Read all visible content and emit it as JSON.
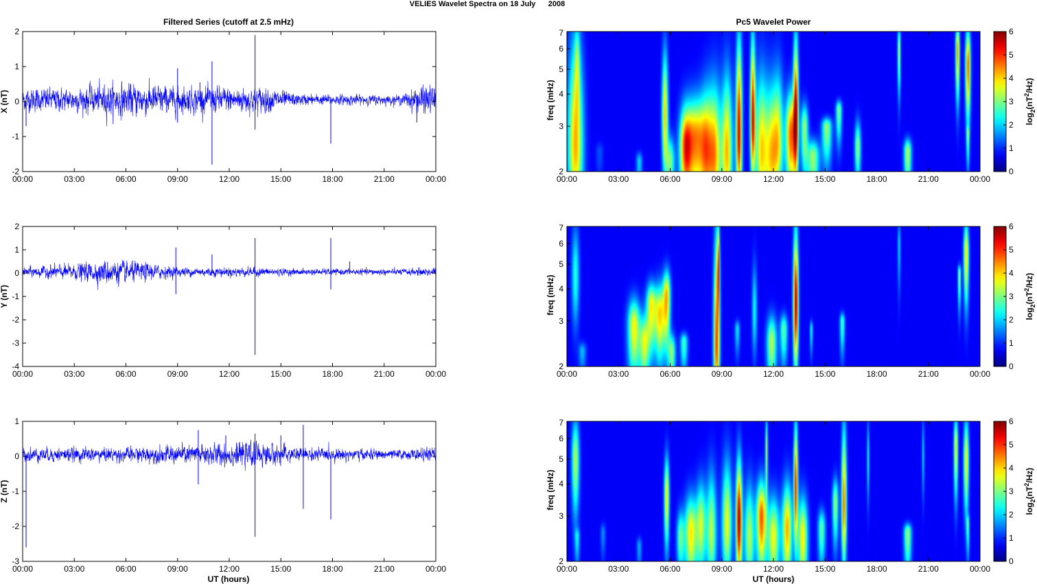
{
  "figure": {
    "suptitle": "VELIES Wavelet Spectra on 18 July      2008",
    "left_title": "Filtered Series (cutoff at 2.5 mHz)",
    "right_title": "Pc5 Wavelet Power",
    "xlabel": "UT (hours)"
  },
  "chart_data": [
    {
      "type": "line",
      "component": "X",
      "ylabel": "X (nT)",
      "xlim": [
        0,
        24
      ],
      "ylim": [
        -2,
        2
      ],
      "xticklabels": [
        "00:00",
        "03:00",
        "06:00",
        "09:00",
        "12:00",
        "15:00",
        "18:00",
        "21:00",
        "00:00"
      ],
      "yticks": [
        -2,
        -1,
        0,
        1,
        2
      ],
      "series_color": "#0000ff",
      "noise_envelope": [
        [
          0,
          0.25
        ],
        [
          3,
          0.25
        ],
        [
          5,
          0.35
        ],
        [
          7,
          0.35
        ],
        [
          9,
          0.28
        ],
        [
          12,
          0.28
        ],
        [
          14,
          0.28
        ],
        [
          16,
          0.12
        ],
        [
          22,
          0.1
        ],
        [
          23,
          0.3
        ],
        [
          24,
          0.3
        ]
      ],
      "spikes": [
        [
          9.0,
          0.95
        ],
        [
          9.0,
          -0.6
        ],
        [
          11.0,
          1.15
        ],
        [
          11.0,
          -1.8
        ],
        [
          13.5,
          1.9
        ],
        [
          13.5,
          -0.8
        ],
        [
          17.9,
          -1.2
        ],
        [
          10.3,
          0.55
        ],
        [
          0.2,
          -0.7
        ],
        [
          22.9,
          -0.6
        ]
      ]
    },
    {
      "type": "line",
      "component": "Y",
      "ylabel": "Y (nT)",
      "xlim": [
        0,
        24
      ],
      "ylim": [
        -4,
        2
      ],
      "xticklabels": [
        "00:00",
        "03:00",
        "06:00",
        "09:00",
        "12:00",
        "15:00",
        "18:00",
        "21:00",
        "00:00"
      ],
      "yticks": [
        -4,
        -3,
        -2,
        -1,
        0,
        1,
        2
      ],
      "series_color": "#0000ff",
      "noise_envelope": [
        [
          0,
          0.15
        ],
        [
          3,
          0.25
        ],
        [
          5,
          0.4
        ],
        [
          7,
          0.3
        ],
        [
          9,
          0.15
        ],
        [
          13,
          0.15
        ],
        [
          16,
          0.1
        ],
        [
          22,
          0.1
        ],
        [
          24,
          0.15
        ]
      ],
      "spikes": [
        [
          8.9,
          1.1
        ],
        [
          8.9,
          -0.9
        ],
        [
          11.0,
          0.8
        ],
        [
          13.5,
          1.5
        ],
        [
          13.5,
          -3.5
        ],
        [
          17.9,
          1.5
        ],
        [
          17.9,
          -0.7
        ],
        [
          19.0,
          0.5
        ]
      ]
    },
    {
      "type": "line",
      "component": "Z",
      "ylabel": "Z (nT)",
      "xlim": [
        0,
        24
      ],
      "ylim": [
        -3,
        1
      ],
      "xticklabels": [
        "00:00",
        "03:00",
        "06:00",
        "09:00",
        "12:00",
        "15:00",
        "18:00",
        "21:00",
        "00:00"
      ],
      "yticks": [
        -3,
        -2,
        -1,
        0,
        1
      ],
      "series_color": "#0000ff",
      "noise_envelope": [
        [
          0,
          0.15
        ],
        [
          3,
          0.15
        ],
        [
          6,
          0.15
        ],
        [
          9,
          0.2
        ],
        [
          12,
          0.25
        ],
        [
          14,
          0.25
        ],
        [
          16,
          0.15
        ],
        [
          22,
          0.1
        ],
        [
          24,
          0.15
        ]
      ],
      "spikes": [
        [
          0.2,
          -2.6
        ],
        [
          10.2,
          0.75
        ],
        [
          10.2,
          -0.8
        ],
        [
          11.8,
          0.6
        ],
        [
          13.5,
          0.65
        ],
        [
          13.5,
          -2.3
        ],
        [
          16.3,
          0.9
        ],
        [
          16.3,
          -1.5
        ],
        [
          17.9,
          -1.8
        ],
        [
          15.0,
          0.6
        ]
      ]
    },
    {
      "type": "heatmap",
      "component": "X",
      "ylabel": "freq (mHz)",
      "cbar_label": "log2(nT^2/Hz)",
      "xlim": [
        0,
        24
      ],
      "ylim": [
        2,
        7
      ],
      "yscale": "log",
      "yticks": [
        2,
        3,
        4,
        5,
        6,
        7
      ],
      "clim": [
        0,
        6
      ],
      "cbar_ticks": [
        0,
        1,
        2,
        3,
        4,
        5,
        6
      ],
      "xticklabels": [
        "00:00",
        "03:00",
        "06:00",
        "09:00",
        "12:00",
        "15:00",
        "18:00",
        "21:00",
        "00:00"
      ],
      "bursts": [
        [
          0.5,
          2.5,
          4.0,
          7.0,
          0.3,
          3
        ],
        [
          0.6,
          5.5,
          1.5,
          7.0,
          0.1,
          2
        ],
        [
          1.9,
          2.4,
          0.6,
          2.0,
          0.15,
          1
        ],
        [
          4.2,
          2.2,
          1.5,
          2.0,
          0.12,
          1.2
        ],
        [
          5.7,
          3.3,
          3.8,
          6.0,
          0.12,
          2.3
        ],
        [
          6.0,
          2.2,
          2.6,
          2.6,
          0.18,
          1.4
        ],
        [
          6.9,
          2.5,
          4.5,
          3.5,
          0.25,
          2.3
        ],
        [
          7.5,
          2.7,
          4.0,
          3.8,
          0.35,
          2.7
        ],
        [
          8.1,
          2.4,
          3.5,
          4.2,
          0.25,
          2.3
        ],
        [
          8.6,
          2.3,
          3.8,
          4.5,
          0.25,
          2.1
        ],
        [
          9.3,
          2.4,
          3.9,
          5.0,
          0.22,
          2.8
        ],
        [
          10.0,
          2.8,
          5.5,
          7.0,
          0.12,
          2.8
        ],
        [
          10.8,
          3.2,
          5.3,
          7.0,
          0.1,
          2.4
        ],
        [
          11.3,
          2.4,
          3.6,
          5.0,
          0.25,
          2.6
        ],
        [
          11.9,
          2.3,
          3.5,
          4.5,
          0.25,
          2.3
        ],
        [
          12.3,
          2.6,
          2.8,
          5.0,
          0.2,
          1.8
        ],
        [
          13.0,
          2.8,
          4.5,
          4.0,
          0.2,
          2.5
        ],
        [
          13.3,
          3.3,
          5.5,
          7.0,
          0.1,
          2.8
        ],
        [
          13.8,
          3.0,
          2.8,
          3.5,
          0.15,
          2.0
        ],
        [
          14.3,
          2.3,
          2.8,
          2.5,
          0.25,
          1.8
        ],
        [
          15.1,
          3.0,
          2.8,
          3.0,
          0.2,
          1.6
        ],
        [
          15.8,
          3.5,
          2.6,
          3.0,
          0.12,
          1.4
        ],
        [
          16.9,
          2.5,
          2.8,
          3.0,
          0.12,
          1.3
        ],
        [
          19.8,
          2.4,
          3.0,
          2.5,
          0.15,
          1.6
        ],
        [
          19.3,
          6.0,
          3.0,
          7.0,
          0.06,
          2
        ],
        [
          22.7,
          6.0,
          4.2,
          7.0,
          0.08,
          2.2
        ],
        [
          23.3,
          5.2,
          4.6,
          7.0,
          0.1,
          2.4
        ],
        [
          23.3,
          2.8,
          2.0,
          2.0,
          0.06,
          1.5
        ]
      ]
    },
    {
      "type": "heatmap",
      "component": "Y",
      "ylabel": "freq (mHz)",
      "cbar_label": "log2(nT^2/Hz)",
      "xlim": [
        0,
        24
      ],
      "ylim": [
        2,
        7
      ],
      "yscale": "log",
      "yticks": [
        2,
        3,
        4,
        5,
        6,
        7
      ],
      "clim": [
        0,
        6
      ],
      "cbar_ticks": [
        0,
        1,
        2,
        3,
        4,
        5,
        6
      ],
      "xticklabels": [
        "00:00",
        "03:00",
        "06:00",
        "09:00",
        "12:00",
        "15:00",
        "18:00",
        "21:00",
        "00:00"
      ],
      "bursts": [
        [
          0.5,
          4.5,
          2.0,
          7.0,
          0.15,
          2
        ],
        [
          0.9,
          2.3,
          1.3,
          2.0,
          0.15,
          0.8
        ],
        [
          3.9,
          2.9,
          3.5,
          3.5,
          0.25,
          2.3
        ],
        [
          4.5,
          2.5,
          3.0,
          3.0,
          0.2,
          1.8
        ],
        [
          4.9,
          3.5,
          3.4,
          4.0,
          0.2,
          2.0
        ],
        [
          5.4,
          3.2,
          3.6,
          4.0,
          0.2,
          2.0
        ],
        [
          5.8,
          3.8,
          3.8,
          4.5,
          0.15,
          2.2
        ],
        [
          6.1,
          2.3,
          2.6,
          2.5,
          0.15,
          1.5
        ],
        [
          6.8,
          2.5,
          2.2,
          2.5,
          0.15,
          1.2
        ],
        [
          8.7,
          2.4,
          4.8,
          7.0,
          0.12,
          2.2
        ],
        [
          8.8,
          5.0,
          3.5,
          7.0,
          0.05,
          2.0
        ],
        [
          9.9,
          2.8,
          1.6,
          2.0,
          0.1,
          1.0
        ],
        [
          10.9,
          3.3,
          1.8,
          5.0,
          0.1,
          1.8
        ],
        [
          11.9,
          2.5,
          3.0,
          3.0,
          0.2,
          1.8
        ],
        [
          12.6,
          2.8,
          2.4,
          3.0,
          0.15,
          1.5
        ],
        [
          13.3,
          3.5,
          5.8,
          7.0,
          0.1,
          2.8
        ],
        [
          14.2,
          2.8,
          1.8,
          2.0,
          0.06,
          1.0
        ],
        [
          16.0,
          3.0,
          2.2,
          2.5,
          0.1,
          1.4
        ],
        [
          19.3,
          6.0,
          1.5,
          7.0,
          0.06,
          2
        ],
        [
          23.2,
          5.5,
          3.8,
          7.0,
          0.1,
          2.2
        ],
        [
          22.8,
          4.6,
          2.8,
          2.5,
          0.06,
          1.5
        ]
      ]
    },
    {
      "type": "heatmap",
      "component": "Z",
      "ylabel": "freq (mHz)",
      "cbar_label": "log2(nT^2/Hz)",
      "xlim": [
        0,
        24
      ],
      "ylim": [
        2,
        7
      ],
      "yscale": "log",
      "yticks": [
        2,
        3,
        4,
        5,
        6,
        7
      ],
      "clim": [
        0,
        6
      ],
      "cbar_ticks": [
        0,
        1,
        2,
        3,
        4,
        5,
        6
      ],
      "xticklabels": [
        "00:00",
        "03:00",
        "06:00",
        "09:00",
        "12:00",
        "15:00",
        "18:00",
        "21:00",
        "00:00"
      ],
      "bursts": [
        [
          0.5,
          5.0,
          3.0,
          7.0,
          0.15,
          2.4
        ],
        [
          0.6,
          2.5,
          1.5,
          2.5,
          0.1,
          1.2
        ],
        [
          2.1,
          2.6,
          1.0,
          2.0,
          0.1,
          1.0
        ],
        [
          4.2,
          2.3,
          1.2,
          2.0,
          0.1,
          1.0
        ],
        [
          5.8,
          3.6,
          3.6,
          5.0,
          0.1,
          2.2
        ],
        [
          6.6,
          2.5,
          2.4,
          3.0,
          0.15,
          1.4
        ],
        [
          7.2,
          2.6,
          3.6,
          3.5,
          0.25,
          2.1
        ],
        [
          7.8,
          2.8,
          3.0,
          4.0,
          0.2,
          2.0
        ],
        [
          8.4,
          2.6,
          3.0,
          4.5,
          0.2,
          2.0
        ],
        [
          9.3,
          2.8,
          3.4,
          5.0,
          0.2,
          2.2
        ],
        [
          10.0,
          2.9,
          5.8,
          5.0,
          0.12,
          2.6
        ],
        [
          10.6,
          2.5,
          3.0,
          4.0,
          0.2,
          2.0
        ],
        [
          11.3,
          3.0,
          4.6,
          4.0,
          0.2,
          2.4
        ],
        [
          11.6,
          5.5,
          3.0,
          7.0,
          0.05,
          2.0
        ],
        [
          12.0,
          2.5,
          3.4,
          3.5,
          0.25,
          2.0
        ],
        [
          12.8,
          2.7,
          4.0,
          4.0,
          0.2,
          2.4
        ],
        [
          13.3,
          4.0,
          5.0,
          7.0,
          0.08,
          2.6
        ],
        [
          13.7,
          2.5,
          3.6,
          3.5,
          0.2,
          2.2
        ],
        [
          14.8,
          2.7,
          2.4,
          3.0,
          0.15,
          1.6
        ],
        [
          15.6,
          3.4,
          2.8,
          4.0,
          0.12,
          1.8
        ],
        [
          16.1,
          3.3,
          4.5,
          7.0,
          0.1,
          2.6
        ],
        [
          17.5,
          5.0,
          1.8,
          7.0,
          0.05,
          1.8
        ],
        [
          19.8,
          2.6,
          2.8,
          2.5,
          0.15,
          1.6
        ],
        [
          20.7,
          5.2,
          1.5,
          7.0,
          0.05,
          1.8
        ],
        [
          22.6,
          5.6,
          3.6,
          7.0,
          0.08,
          2.2
        ],
        [
          23.2,
          5.0,
          3.6,
          7.0,
          0.1,
          2.3
        ],
        [
          23.3,
          2.8,
          2.0,
          2.0,
          0.06,
          1.5
        ]
      ]
    }
  ]
}
